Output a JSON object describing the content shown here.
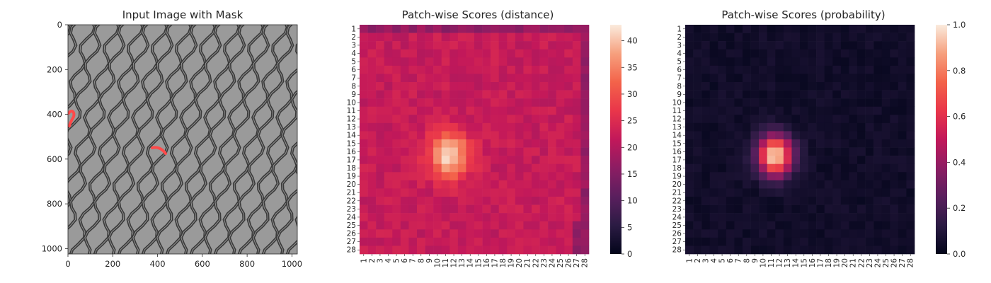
{
  "figure": {
    "panels": [
      {
        "title": "Input Image with Mask"
      },
      {
        "title": "Patch-wise Scores (distance)"
      },
      {
        "title": "Patch-wise Scores (probability)"
      }
    ]
  },
  "colors": {
    "mask": "#ff4a4a",
    "mesh_dark": "#3a3a3a",
    "mesh_light": "#9a9a9a",
    "cmap": "rocket"
  },
  "chart_data": [
    {
      "type": "image",
      "title": "Input Image with Mask",
      "xlabel": "",
      "ylabel": "",
      "xlim": [
        0,
        1024
      ],
      "ylim": [
        1024,
        0
      ],
      "xticks": [
        0,
        200,
        400,
        600,
        800,
        1000
      ],
      "yticks": [
        0,
        200,
        400,
        600,
        800,
        1000
      ],
      "content": "grayscale wire-mesh texture with red anomaly mask regions"
    },
    {
      "type": "heatmap",
      "title": "Patch-wise Scores (distance)",
      "xlabel": "",
      "ylabel": "",
      "rows": [
        "1",
        "2",
        "3",
        "4",
        "5",
        "6",
        "7",
        "8",
        "9",
        "10",
        "11",
        "12",
        "13",
        "14",
        "15",
        "16",
        "17",
        "18",
        "19",
        "20",
        "21",
        "22",
        "23",
        "24",
        "25",
        "26",
        "27",
        "28"
      ],
      "cols": [
        "1",
        "2",
        "3",
        "4",
        "5",
        "6",
        "7",
        "8",
        "9",
        "10",
        "11",
        "12",
        "13",
        "14",
        "15",
        "16",
        "17",
        "18",
        "19",
        "20",
        "21",
        "22",
        "23",
        "24",
        "25",
        "26",
        "27",
        "28"
      ],
      "colorbar_range": [
        0,
        43
      ],
      "colorbar_ticks": [
        0,
        5,
        10,
        15,
        20,
        25,
        30,
        35,
        40
      ],
      "background_level": 22,
      "hotspot": {
        "row_center": 16.5,
        "col_center": 11.5,
        "peak": 42
      },
      "grid": false
    },
    {
      "type": "heatmap",
      "title": "Patch-wise Scores (probability)",
      "xlabel": "",
      "ylabel": "",
      "rows": [
        "1",
        "2",
        "3",
        "4",
        "5",
        "6",
        "7",
        "8",
        "9",
        "10",
        "11",
        "12",
        "13",
        "14",
        "15",
        "16",
        "17",
        "18",
        "19",
        "20",
        "21",
        "22",
        "23",
        "24",
        "25",
        "26",
        "27",
        "28"
      ],
      "cols": [
        "1",
        "2",
        "3",
        "4",
        "5",
        "6",
        "7",
        "8",
        "9",
        "10",
        "11",
        "12",
        "13",
        "14",
        "15",
        "16",
        "17",
        "18",
        "19",
        "20",
        "21",
        "22",
        "23",
        "24",
        "25",
        "26",
        "27",
        "28"
      ],
      "colorbar_range": [
        0.0,
        1.0
      ],
      "colorbar_ticks": [
        "0.0",
        "0.2",
        "0.4",
        "0.6",
        "0.8",
        "1.0"
      ],
      "background_level": 0.02,
      "hotspot": {
        "row_center": 16.5,
        "col_center": 11.5,
        "peak": 1.0
      },
      "grid": false
    }
  ]
}
